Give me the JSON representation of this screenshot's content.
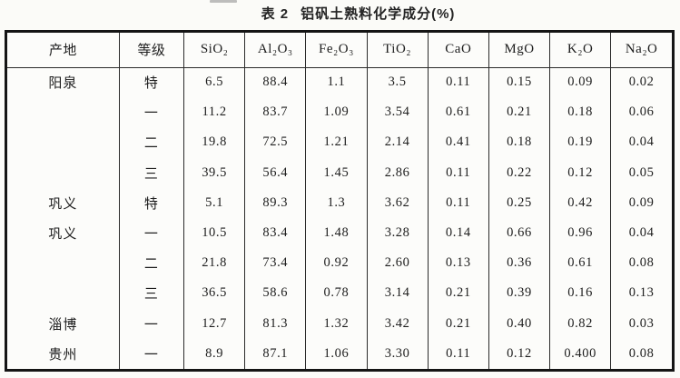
{
  "title": {
    "prefix": "表 2",
    "text": "铝矾土熟料化学成分(%)"
  },
  "table": {
    "columns": [
      {
        "key": "origin",
        "label": "产地"
      },
      {
        "key": "grade",
        "label": "等级"
      },
      {
        "key": "sio2",
        "label": "SiO₂"
      },
      {
        "key": "al2o3",
        "label": "Al₂O₃"
      },
      {
        "key": "fe2o3",
        "label": "Fe₂O₃"
      },
      {
        "key": "tio2",
        "label": "TiO₂"
      },
      {
        "key": "cao",
        "label": "CaO"
      },
      {
        "key": "mgo",
        "label": "MgO"
      },
      {
        "key": "k2o",
        "label": "K₂O"
      },
      {
        "key": "na2o",
        "label": "Na₂O"
      }
    ],
    "rows": [
      {
        "origin": "阳泉",
        "grade": "特",
        "values": [
          "6.5",
          "88.4",
          "1.1",
          "3.5",
          "0.11",
          "0.15",
          "0.09",
          "0.02"
        ]
      },
      {
        "origin": "",
        "grade": "一",
        "values": [
          "11.2",
          "83.7",
          "1.09",
          "3.54",
          "0.61",
          "0.21",
          "0.18",
          "0.06"
        ]
      },
      {
        "origin": "",
        "grade": "二",
        "values": [
          "19.8",
          "72.5",
          "1.21",
          "2.14",
          "0.41",
          "0.18",
          "0.19",
          "0.04"
        ]
      },
      {
        "origin": "",
        "grade": "三",
        "values": [
          "39.5",
          "56.4",
          "1.45",
          "2.86",
          "0.11",
          "0.22",
          "0.12",
          "0.05"
        ]
      },
      {
        "origin": "巩义",
        "grade": "特",
        "values": [
          "5.1",
          "89.3",
          "1.3",
          "3.62",
          "0.11",
          "0.25",
          "0.42",
          "0.09"
        ]
      },
      {
        "origin": "巩义",
        "grade": "一",
        "values": [
          "10.5",
          "83.4",
          "1.48",
          "3.28",
          "0.14",
          "0.66",
          "0.96",
          "0.04"
        ]
      },
      {
        "origin": "",
        "grade": "二",
        "values": [
          "21.8",
          "73.4",
          "0.92",
          "2.60",
          "0.13",
          "0.36",
          "0.61",
          "0.08"
        ]
      },
      {
        "origin": "",
        "grade": "三",
        "values": [
          "36.5",
          "58.6",
          "0.78",
          "3.14",
          "0.21",
          "0.39",
          "0.16",
          "0.13"
        ]
      },
      {
        "origin": "淄博",
        "grade": "一",
        "values": [
          "12.7",
          "81.3",
          "1.32",
          "3.42",
          "0.21",
          "0.40",
          "0.82",
          "0.03"
        ]
      },
      {
        "origin": "贵州",
        "grade": "一",
        "values": [
          "8.9",
          "87.1",
          "1.06",
          "3.30",
          "0.11",
          "0.12",
          "0.400",
          "0.08"
        ]
      }
    ]
  }
}
